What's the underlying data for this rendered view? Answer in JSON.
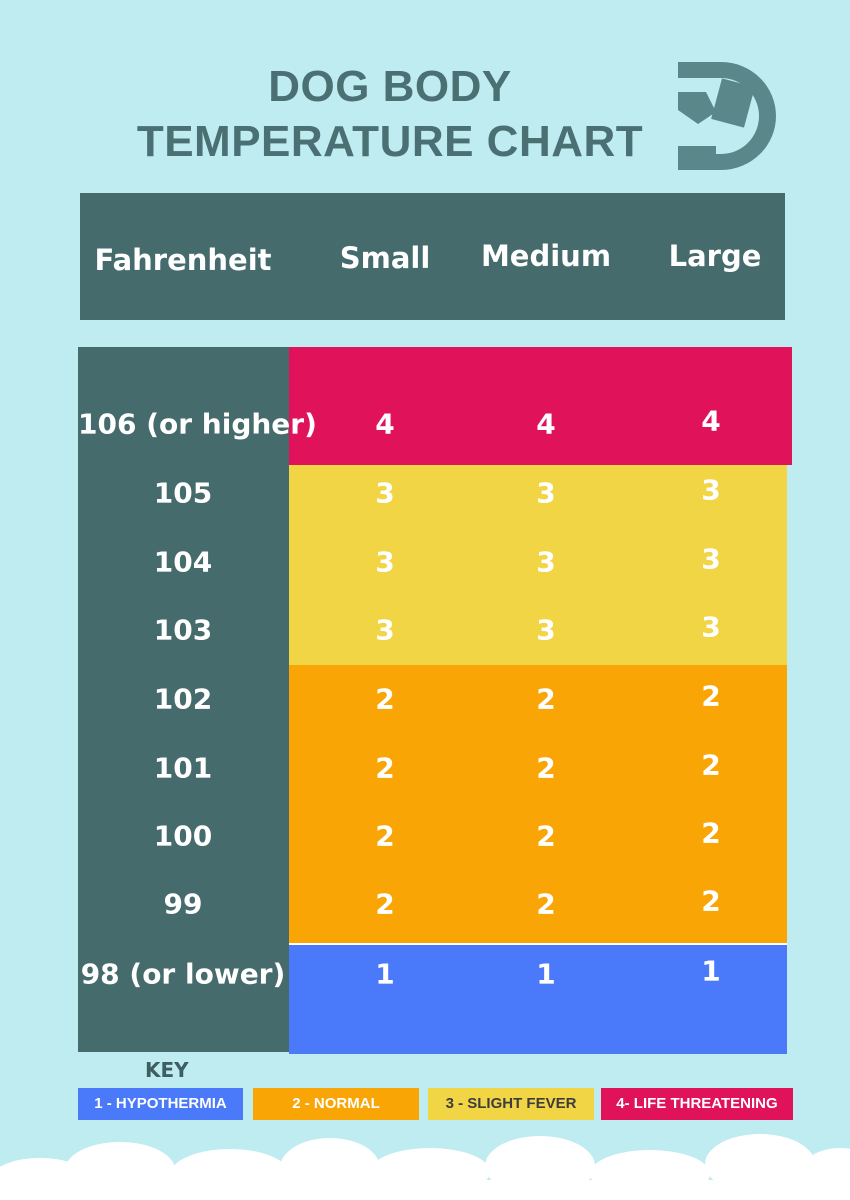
{
  "header": {
    "title_line1": "DOG BODY",
    "title_line2": "TEMPERATURE CHART"
  },
  "table": {
    "columns": [
      "Fahrenheit",
      "Small",
      "Medium",
      "Large"
    ],
    "rows": [
      [
        "106 (or higher)",
        4,
        4,
        4
      ],
      [
        "105",
        3,
        3,
        3
      ],
      [
        "104",
        3,
        3,
        3
      ],
      [
        "103",
        3,
        3,
        3
      ],
      [
        "102",
        2,
        2,
        2
      ],
      [
        "101",
        2,
        2,
        2
      ],
      [
        "100",
        2,
        2,
        2
      ],
      [
        "99",
        2,
        2,
        2
      ],
      [
        "98 (or lower)",
        1,
        1,
        1
      ]
    ]
  },
  "key": {
    "title": "KEY",
    "items": [
      "1 - HYPOTHERMIA",
      "2 - NORMAL",
      "3 - SLIGHT FEVER",
      "4- LIFE THREATENING"
    ]
  }
}
